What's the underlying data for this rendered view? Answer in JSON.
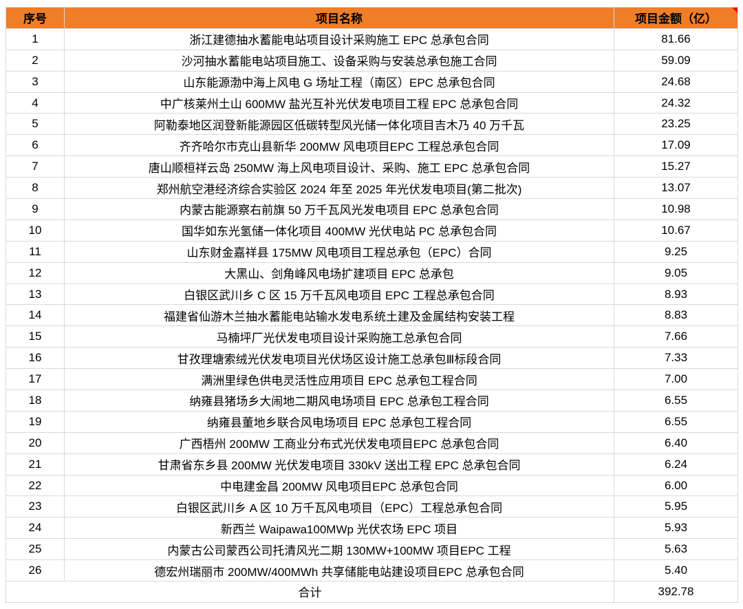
{
  "colors": {
    "header_bg": "#F07D28",
    "header_text": "#FFFFFF",
    "grid_border": "#D9D9D9",
    "cell_text": "#000000",
    "comment_marker_red": "#FF0000"
  },
  "icons": {
    "comment_marker": "red-triangle-comment-indicator"
  },
  "chart_data": {
    "type": "table",
    "title": "",
    "columns": [
      "序号",
      "项目名称",
      "项目金额（亿）"
    ],
    "rows": [
      [
        "1",
        "浙江建德抽水蓄能电站项目设计采购施工 EPC 总承包合同",
        "81.66"
      ],
      [
        "2",
        "沙河抽水蓄能电站项目施工、设备采购与安装总承包施工合同",
        "59.09"
      ],
      [
        "3",
        "山东能源渤中海上风电 G 场址工程（南区）EPC 总承包合同",
        "24.68"
      ],
      [
        "4",
        "中广核莱州土山 600MW 盐光互补光伏发电项目工程 EPC 总承包合同",
        "24.32"
      ],
      [
        "5",
        "阿勒泰地区润登新能源园区低碳转型风光储一体化项目吉木乃 40 万千瓦",
        "23.25"
      ],
      [
        "6",
        "齐齐哈尔市克山县新华 200MW 风电项目EPC 工程总承包合同",
        "17.09"
      ],
      [
        "7",
        "唐山顺桓祥云岛 250MW 海上风电项目设计、采购、施工 EPC 总承包合同",
        "15.27"
      ],
      [
        "8",
        "郑州航空港经济综合实验区 2024 年至 2025 年光伏发电项目(第二批次)",
        "13.07"
      ],
      [
        "9",
        "内蒙古能源察右前旗 50 万千瓦风光发电项目 EPC 总承包合同",
        "10.98"
      ],
      [
        "10",
        "国华如东光氢储一体化项目 400MW 光伏电站 PC 总承包合同",
        "10.67"
      ],
      [
        "11",
        "山东财金嘉祥县 175MW 风电项目工程总承包（EPC）合同",
        "9.25"
      ],
      [
        "12",
        "大黑山、剑角峰风电场扩建项目 EPC 总承包",
        "9.05"
      ],
      [
        "13",
        "白银区武川乡 C 区 15 万千瓦风电项目 EPC 工程总承包合同",
        "8.93"
      ],
      [
        "14",
        "福建省仙游木兰抽水蓄能电站输水发电系统土建及金属结构安装工程",
        "8.83"
      ],
      [
        "15",
        "马楠坪厂光伏发电项目设计采购施工总承包合同",
        "7.66"
      ],
      [
        "16",
        "甘孜理塘索绒光伏发电项目光伏场区设计施工总承包Ⅲ标段合同",
        "7.33"
      ],
      [
        "17",
        "满洲里绿色供电灵活性应用项目 EPC 总承包工程合同",
        "7.00"
      ],
      [
        "18",
        "纳雍县猪场乡大闹地二期风电场项目 EPC 总承包工程合同",
        "6.55"
      ],
      [
        "19",
        "纳雍县董地乡联合风电场项目 EPC 总承包工程合同",
        "6.55"
      ],
      [
        "20",
        "广西梧州 200MW 工商业分布式光伏发电项目EPC 总承包合同",
        "6.40"
      ],
      [
        "21",
        "甘肃省东乡县 200MW 光伏发电项目 330kV 送出工程 EPC 总承包合同",
        "6.24"
      ],
      [
        "22",
        "中电建金昌 200MW 风电项目EPC 总承包合同",
        "6.00"
      ],
      [
        "23",
        "白银区武川乡 A 区 10 万千瓦风电项目（EPC）工程总承包合同",
        "5.95"
      ],
      [
        "24",
        "新西兰 Waipawa100MWp 光伏农场 EPC 项目",
        "5.93"
      ],
      [
        "25",
        "内蒙古公司蒙西公司托清风光二期 130MW+100MW 项目EPC 工程",
        "5.63"
      ],
      [
        "26",
        "德宏州瑞丽市 200MW/400MWh 共享储能电站建设项目EPC 总承包合同",
        "5.40"
      ]
    ],
    "total_row": [
      "合计",
      "392.78"
    ]
  }
}
